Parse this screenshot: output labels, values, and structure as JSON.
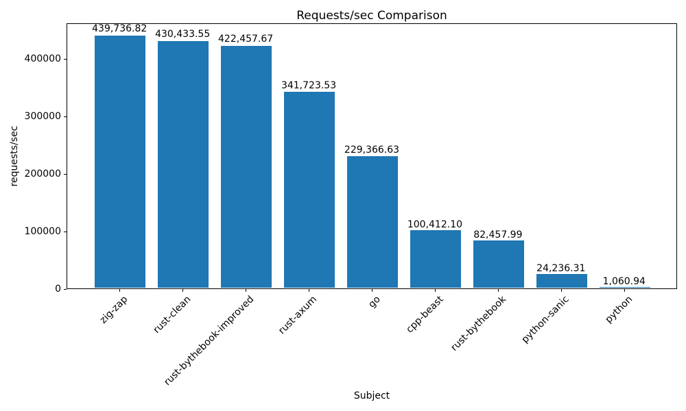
{
  "chart_data": {
    "type": "bar",
    "title": "Requests/sec Comparison",
    "xlabel": "Subject",
    "ylabel": "requests/sec",
    "categories": [
      "zig-zap",
      "rust-clean",
      "rust-bythebook-improved",
      "rust-axum",
      "go",
      "cpp-beast",
      "rust-bythebook",
      "python-sanic",
      "python"
    ],
    "values": [
      439736.82,
      430433.55,
      422457.67,
      341723.53,
      229366.63,
      100412.1,
      82457.99,
      24236.31,
      1060.94
    ],
    "bar_labels": [
      "439,736.82",
      "430,433.55",
      "422,457.67",
      "341,723.53",
      "229,366.63",
      "100,412.10",
      "82,457.99",
      "24,236.31",
      "1,060.94"
    ],
    "ytick_values": [
      0,
      100000,
      200000,
      300000,
      400000
    ],
    "ytick_labels": [
      "0",
      "100000",
      "200000",
      "300000",
      "400000"
    ],
    "ylim": [
      0,
      461724
    ],
    "bar_color": "#1f77b4",
    "grid": false,
    "legend_position": "none"
  }
}
